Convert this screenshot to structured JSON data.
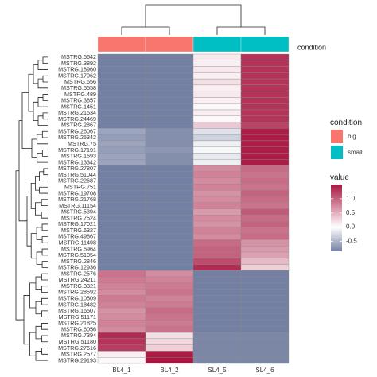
{
  "chart_data": {
    "type": "heatmap",
    "title": "",
    "columns": [
      "BL4_1",
      "BL4_2",
      "SL4_5",
      "SL4_6"
    ],
    "rows": [
      "MSTRG.5642",
      "MSTRG.3892",
      "MSTRG.18960",
      "MSTRG.17062",
      "MSTRG.656",
      "MSTRG.5558",
      "MSTRG.489",
      "MSTRG.3857",
      "MSTRG.1451",
      "MSTRG.21534",
      "MSTRG.24469",
      "MSTRG.2867",
      "MSTRG.26067",
      "MSTRG.25342",
      "MSTRG.75",
      "MSTRG.17191",
      "MSTRG.1693",
      "MSTRG.13342",
      "MSTRG.27807",
      "MSTRG.51044",
      "MSTRG.22687",
      "MSTRG.751",
      "MSTRG.19708",
      "MSTRG.21768",
      "MSTRG.11154",
      "MSTRG.5394",
      "MSTRG.7524",
      "MSTRG.17021",
      "MSTRG.6327",
      "MSTRG.49867",
      "MSTRG.11498",
      "MSTRG.6964",
      "MSTRG.51054",
      "MSTRG.2846",
      "MSTRG.12936",
      "MSTRG.2576",
      "MSTRG.24211",
      "MSTRG.3321",
      "MSTRG.28592",
      "MSTRG.10509",
      "MSTRG.18482",
      "MSTRG.16507",
      "MSTRG.51171",
      "MSTRG.21825",
      "MSTRG.6056",
      "MSTRG.7394",
      "MSTRG.51180",
      "MSTRG.27616",
      "MSTRG.2577",
      "MSTRG.29193"
    ],
    "values": [
      [
        -0.85,
        -0.85,
        0.15,
        1.3
      ],
      [
        -0.85,
        -0.85,
        0.1,
        1.3
      ],
      [
        -0.85,
        -0.85,
        0.15,
        1.3
      ],
      [
        -0.85,
        -0.85,
        0.1,
        1.3
      ],
      [
        -0.85,
        -0.85,
        0.2,
        1.3
      ],
      [
        -0.85,
        -0.85,
        0.1,
        1.3
      ],
      [
        -0.85,
        -0.85,
        0.15,
        1.3
      ],
      [
        -0.85,
        -0.85,
        0.1,
        1.3
      ],
      [
        -0.85,
        -0.85,
        0.05,
        1.3
      ],
      [
        -0.85,
        -0.85,
        0.1,
        1.3
      ],
      [
        -0.85,
        -0.85,
        0.05,
        1.3
      ],
      [
        -0.85,
        -0.85,
        0.35,
        1.2
      ],
      [
        -0.6,
        -0.75,
        -0.2,
        1.45
      ],
      [
        -0.65,
        -0.75,
        -0.3,
        1.45
      ],
      [
        -0.6,
        -0.75,
        -0.1,
        1.45
      ],
      [
        -0.65,
        -0.7,
        -0.05,
        1.45
      ],
      [
        -0.6,
        -0.75,
        -0.15,
        1.45
      ],
      [
        -0.6,
        -0.75,
        -0.1,
        1.45
      ],
      [
        -0.85,
        -0.85,
        0.75,
        0.95
      ],
      [
        -0.85,
        -0.85,
        0.8,
        0.9
      ],
      [
        -0.85,
        -0.85,
        0.75,
        0.95
      ],
      [
        -0.85,
        -0.85,
        0.8,
        0.9
      ],
      [
        -0.85,
        -0.85,
        0.7,
        1.0
      ],
      [
        -0.85,
        -0.85,
        0.75,
        0.95
      ],
      [
        -0.85,
        -0.85,
        0.8,
        0.9
      ],
      [
        -0.85,
        -0.85,
        0.65,
        1.05
      ],
      [
        -0.85,
        -0.85,
        0.75,
        0.95
      ],
      [
        -0.85,
        -0.85,
        0.7,
        1.0
      ],
      [
        -0.85,
        -0.85,
        0.8,
        0.9
      ],
      [
        -0.85,
        -0.85,
        0.75,
        0.95
      ],
      [
        -0.85,
        -0.85,
        0.95,
        0.7
      ],
      [
        -0.85,
        -0.85,
        1.0,
        0.65
      ],
      [
        -0.85,
        -0.85,
        1.0,
        0.6
      ],
      [
        -0.85,
        -0.85,
        1.15,
        0.45
      ],
      [
        -0.85,
        -0.85,
        1.35,
        0.3
      ],
      [
        0.9,
        0.75,
        -0.85,
        -0.85
      ],
      [
        0.85,
        0.8,
        -0.85,
        -0.85
      ],
      [
        0.8,
        0.85,
        -0.85,
        -0.85
      ],
      [
        0.75,
        0.9,
        -0.85,
        -0.85
      ],
      [
        0.85,
        0.8,
        -0.85,
        -0.85
      ],
      [
        0.8,
        0.85,
        -0.85,
        -0.85
      ],
      [
        0.7,
        0.95,
        -0.85,
        -0.85
      ],
      [
        0.75,
        0.9,
        -0.85,
        -0.85
      ],
      [
        0.8,
        0.85,
        -0.85,
        -0.85
      ],
      [
        0.75,
        0.9,
        -0.85,
        -0.85
      ],
      [
        1.35,
        0.2,
        -0.8,
        -0.8
      ],
      [
        1.3,
        0.25,
        -0.8,
        -0.8
      ],
      [
        1.25,
        0.3,
        -0.8,
        -0.8
      ],
      [
        0.1,
        1.45,
        -0.8,
        -0.8
      ],
      [
        0.05,
        1.5,
        -0.8,
        -0.8
      ]
    ],
    "color_scale": {
      "low": "#7480a3",
      "mid": "#ffffff",
      "high": "#a8153f",
      "low_value": -0.85,
      "high_value": 1.5
    },
    "annotation": {
      "label": "condition",
      "values": [
        "big",
        "big",
        "small",
        "small"
      ],
      "colors": {
        "big": "#f8766d",
        "small": "#00bfc4"
      }
    },
    "legends": {
      "condition": {
        "title": "condition",
        "items": [
          "big",
          "small"
        ]
      },
      "value": {
        "title": "value",
        "ticks": [
          1.0,
          0.5,
          0.0,
          -0.5
        ],
        "tick_labels": [
          "1.0",
          "0.5",
          "0.0",
          "-0.5"
        ]
      }
    },
    "row_dendrogram": true,
    "column_dendrogram": true
  }
}
